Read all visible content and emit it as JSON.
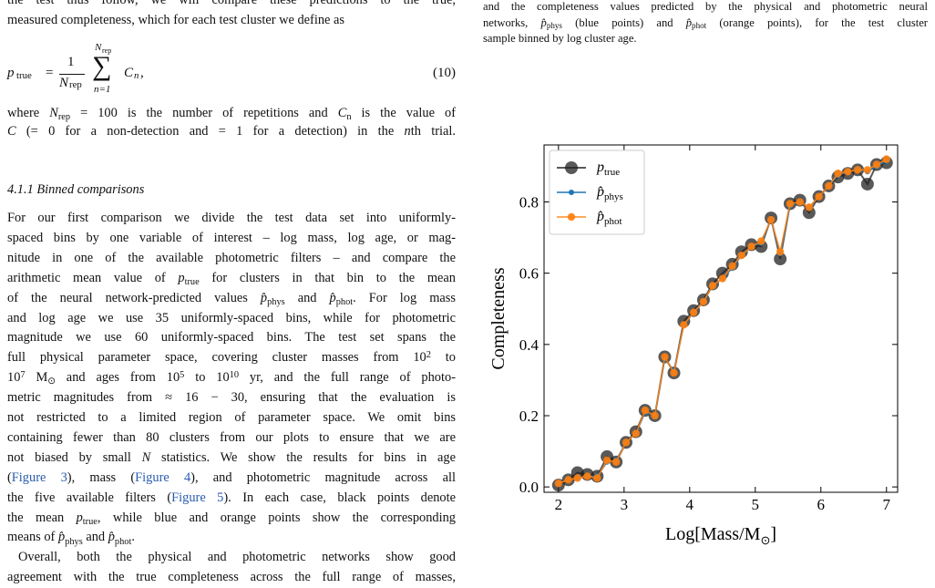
{
  "left_column": {
    "intro_lines": [
      [
        "the test thus follow, we will compare these predictions to the true,"
      ],
      [
        "measured completeness, which for each test cluster we define as"
      ]
    ],
    "equation": {
      "lhs": "p",
      "lhs_sub": "true",
      "equals": "=",
      "num": "1",
      "den": "N",
      "den_sub": "rep",
      "sum_top": "N",
      "sum_top_sub": "rep",
      "sigma": "∑",
      "sum_bottom": "n=1",
      "term": "C",
      "term_sub": "n",
      "comma": ",",
      "number": "(10)"
    },
    "after_eq_lines": [
      [
        "where ",
        {
          "m": "N",
          "sub": "rep"
        },
        " = 100 is the number of repetitions and ",
        {
          "m": "C",
          "sub": "n"
        },
        " is the value of"
      ],
      [
        {
          "m": "C"
        },
        " (= 0 for a non-detection and = 1 for a detection) in the ",
        {
          "m": "n"
        },
        "th trial."
      ]
    ],
    "heading": "4.1.1 Binned comparisons",
    "paragraph_lines": [
      [
        "For our first comparison we divide the test data set into uniformly-"
      ],
      [
        "spaced bins by one variable of interest – log mass, log age, or mag-"
      ],
      [
        "nitude in one of the available photometric filters – and compare the"
      ],
      [
        "arithmetic mean value of ",
        {
          "m": "p",
          "sub": "true"
        },
        " for clusters in that bin to the mean"
      ],
      [
        "of the neural network-predicted values ",
        {
          "m": "p̂",
          "sub": "phys"
        },
        " and ",
        {
          "m": "p̂",
          "sub": "phot"
        },
        ". For log mass"
      ],
      [
        "and log age we use 35 uniformly-spaced bins, while for photometric"
      ],
      [
        "magnitude we use 60 uniformly-spaced bins. The test set spans the"
      ],
      [
        "full physical parameter space, covering cluster masses from 10",
        {
          "sup": "2"
        },
        " to"
      ],
      [
        "10",
        {
          "sup": "7"
        },
        " M",
        {
          "sub": "⊙"
        },
        " and ages from 10",
        {
          "sup": "5"
        },
        " to 10",
        {
          "sup": "10"
        },
        " yr, and the full range of photo-"
      ],
      [
        "metric magnitudes from ≈ 16 − 30, ensuring that the evaluation is"
      ],
      [
        "not restricted to a limited region of parameter space. We omit bins"
      ],
      [
        "containing fewer than 80 clusters from our plots to ensure that we are"
      ],
      [
        "not biased by small ",
        {
          "m": "N"
        },
        " statistics. We show the results for bins in age"
      ],
      [
        "(",
        {
          "link": "Figure 3"
        },
        "), mass (",
        {
          "link": "Figure 4"
        },
        "), and photometric magnitude across all"
      ],
      [
        "the five available filters (",
        {
          "link": "Figure 5"
        },
        "). In each case, black points denote"
      ],
      [
        "the mean ",
        {
          "m": "p",
          "sub": "true"
        },
        ", while blue and orange points show the corresponding"
      ],
      [
        "means of ",
        {
          "m": "p̂",
          "sub": "phys"
        },
        " and ",
        {
          "m": "p̂",
          "sub": "phot"
        },
        "."
      ],
      [
        "Overall, both the physical and photometric networks show good"
      ],
      [
        "agreement with the true completeness across the full range of masses,"
      ]
    ]
  },
  "caption_lines": [
    [
      "and the completeness values predicted by the physical and photometric neural"
    ],
    [
      "networks, ",
      {
        "m": "p̂",
        "sub": "phys"
      },
      " (blue points) and ",
      {
        "m": "p̂",
        "sub": "phot"
      },
      " (orange points), for the test cluster"
    ],
    [
      "sample binned by log cluster age."
    ]
  ],
  "chart_data": {
    "type": "line",
    "ylabel": "Completeness",
    "xlabel": "Log[Mass/M",
    "xlabel_sub": "⊙",
    "xlabel_end": "]",
    "xlim": [
      1.78,
      7.17
    ],
    "ylim": [
      -0.015,
      0.96
    ],
    "xticks": [
      2,
      3,
      4,
      5,
      6,
      7
    ],
    "yticks": [
      {
        "value": 0,
        "label": "0.0"
      },
      0.2,
      0.4,
      0.6,
      0.8
    ],
    "legend": "upper left",
    "x": [
      2.0,
      2.15,
      2.29,
      2.44,
      2.59,
      2.74,
      2.88,
      3.03,
      3.18,
      3.32,
      3.47,
      3.62,
      3.76,
      3.91,
      4.06,
      4.21,
      4.35,
      4.5,
      4.65,
      4.79,
      4.94,
      5.09,
      5.24,
      5.38,
      5.53,
      5.68,
      5.82,
      5.97,
      6.12,
      6.26,
      6.41,
      6.56,
      6.71,
      6.85,
      7.0
    ],
    "series": [
      {
        "name": "p",
        "name_sub": "true",
        "color": "#222222",
        "values": [
          0.005,
          0.02,
          0.04,
          0.035,
          0.03,
          0.085,
          0.07,
          0.125,
          0.155,
          0.215,
          0.2,
          0.365,
          0.32,
          0.465,
          0.495,
          0.525,
          0.57,
          0.6,
          0.625,
          0.66,
          0.68,
          0.675,
          0.755,
          0.64,
          0.795,
          0.805,
          0.77,
          0.815,
          0.845,
          0.87,
          0.88,
          0.89,
          0.85,
          0.905,
          0.91
        ]
      },
      {
        "name": "p̂",
        "name_sub": "phys",
        "color": "#1f77b4",
        "values": [
          0.01,
          0.02,
          0.025,
          0.03,
          0.03,
          0.07,
          0.075,
          0.125,
          0.15,
          0.21,
          0.2,
          0.36,
          0.325,
          0.455,
          0.49,
          0.52,
          0.565,
          0.585,
          0.615,
          0.65,
          0.675,
          0.685,
          0.75,
          0.655,
          0.79,
          0.8,
          0.785,
          0.815,
          0.845,
          0.875,
          0.885,
          0.89,
          0.885,
          0.9,
          0.915
        ]
      },
      {
        "name": "p̂",
        "name_sub": "phot",
        "color": "#ff7f0e",
        "values": [
          0.01,
          0.02,
          0.025,
          0.03,
          0.025,
          0.075,
          0.07,
          0.125,
          0.15,
          0.215,
          0.2,
          0.365,
          0.32,
          0.455,
          0.49,
          0.52,
          0.565,
          0.585,
          0.62,
          0.65,
          0.675,
          0.69,
          0.75,
          0.66,
          0.795,
          0.8,
          0.785,
          0.815,
          0.845,
          0.88,
          0.885,
          0.89,
          0.89,
          0.905,
          0.92
        ]
      }
    ]
  }
}
